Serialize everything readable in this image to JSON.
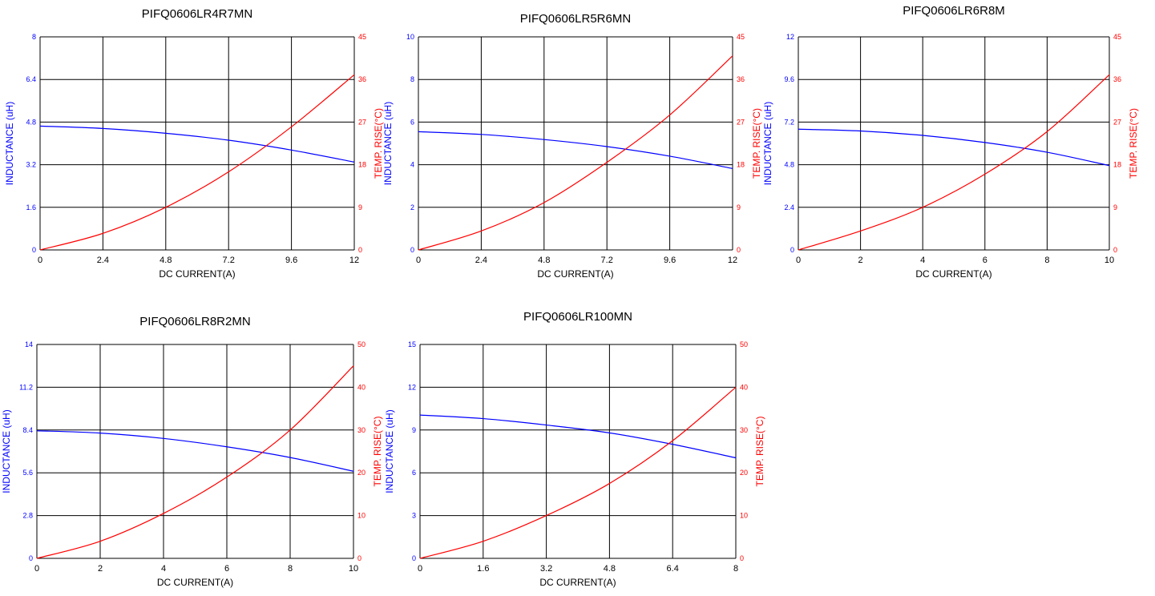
{
  "colors": {
    "inductance": "#0000ff",
    "temperature": "#ff0000",
    "grid": "#000000"
  },
  "chart_data": [
    {
      "type": "line",
      "title": "PIFQ0606LR4R7MN",
      "xlabel": "DC CURRENT(A)",
      "ylabel": "INDUCTANCE (uH)",
      "y2label": "TEMP. RISE(°C)",
      "xlim": [
        0,
        12
      ],
      "ylim": [
        0,
        8
      ],
      "y2lim": [
        0,
        45
      ],
      "xticks": [
        "0",
        "2.4",
        "4.8",
        "7.2",
        "9.6",
        "12"
      ],
      "yticks": [
        "0",
        "1.6",
        "3.2",
        "4.8",
        "6.4",
        "8"
      ],
      "y2ticks": [
        "0",
        "9",
        "18",
        "27",
        "36",
        "45"
      ],
      "grid": true,
      "series": [
        {
          "axis": "left",
          "x": [
            0,
            2.4,
            4.8,
            7.2,
            9.6,
            12
          ],
          "values": [
            4.65,
            4.56,
            4.38,
            4.12,
            3.75,
            3.3
          ]
        },
        {
          "axis": "right",
          "x": [
            0,
            2.4,
            4.8,
            7.2,
            9.6,
            12
          ],
          "values": [
            0,
            3.5,
            9,
            16.5,
            26,
            37
          ]
        }
      ]
    },
    {
      "type": "line",
      "title": "PIFQ0606LR5R6MN",
      "xlabel": "DC CURRENT(A)",
      "ylabel": "INDUCTANCE (uH)",
      "y2label": "TEMP. RISE(°C)",
      "xlim": [
        0,
        12
      ],
      "ylim": [
        0,
        10
      ],
      "y2lim": [
        0,
        45
      ],
      "xticks": [
        "0",
        "2.4",
        "4.8",
        "7.2",
        "9.6",
        "12"
      ],
      "yticks": [
        "0",
        "2",
        "4",
        "6",
        "8",
        "10"
      ],
      "y2ticks": [
        "0",
        "9",
        "18",
        "27",
        "36",
        "45"
      ],
      "grid": true,
      "series": [
        {
          "axis": "left",
          "x": [
            0,
            2.4,
            4.8,
            7.2,
            9.6,
            12
          ],
          "values": [
            5.55,
            5.42,
            5.18,
            4.85,
            4.4,
            3.82
          ]
        },
        {
          "axis": "right",
          "x": [
            0,
            2.4,
            4.8,
            7.2,
            9.6,
            12
          ],
          "values": [
            0,
            4,
            10,
            18.5,
            28.5,
            41
          ]
        }
      ]
    },
    {
      "type": "line",
      "title": "PIFQ0606LR6R8M",
      "xlabel": "DC CURRENT(A)",
      "ylabel": "INDUCTANCE (uH)",
      "y2label": "TEMP. RISE(°C)",
      "xlim": [
        0,
        10
      ],
      "ylim": [
        0,
        12
      ],
      "y2lim": [
        0,
        45
      ],
      "xticks": [
        "0",
        "2",
        "4",
        "6",
        "8",
        "10"
      ],
      "yticks": [
        "0",
        "2.4",
        "4.8",
        "7.2",
        "9.6",
        "12"
      ],
      "y2ticks": [
        "0",
        "9",
        "18",
        "27",
        "36",
        "45"
      ],
      "grid": true,
      "series": [
        {
          "axis": "left",
          "x": [
            0,
            2,
            4,
            6,
            8,
            10
          ],
          "values": [
            6.8,
            6.7,
            6.45,
            6.05,
            5.5,
            4.75
          ]
        },
        {
          "axis": "right",
          "x": [
            0,
            2,
            4,
            6,
            8,
            10
          ],
          "values": [
            0,
            4,
            9,
            16,
            25,
            37
          ]
        }
      ]
    },
    {
      "type": "line",
      "title": "PIFQ0606LR8R2MN",
      "xlabel": "DC CURRENT(A)",
      "ylabel": "INDUCTANCE (uH)",
      "y2label": "TEMP. RISE(°C)",
      "xlim": [
        0,
        10
      ],
      "ylim": [
        0,
        14
      ],
      "y2lim": [
        0,
        50
      ],
      "xticks": [
        "0",
        "2",
        "4",
        "6",
        "8",
        "10"
      ],
      "yticks": [
        "0",
        "2.8",
        "5.6",
        "8.4",
        "11.2",
        "14"
      ],
      "y2ticks": [
        "0",
        "10",
        "20",
        "30",
        "40",
        "50"
      ],
      "grid": true,
      "series": [
        {
          "axis": "left",
          "x": [
            0,
            2,
            4,
            6,
            8,
            10
          ],
          "values": [
            8.35,
            8.2,
            7.85,
            7.3,
            6.6,
            5.7
          ]
        },
        {
          "axis": "right",
          "x": [
            0,
            2,
            4,
            6,
            8,
            10
          ],
          "values": [
            0,
            4,
            10.5,
            19,
            30,
            45
          ]
        }
      ]
    },
    {
      "type": "line",
      "title": "PIFQ0606LR100MN",
      "xlabel": "DC CURRENT(A)",
      "ylabel": "INDUCTANCE (uH)",
      "y2label": "TEMP. RISE(°C)",
      "xlim": [
        0,
        8
      ],
      "ylim": [
        0,
        15
      ],
      "y2lim": [
        0,
        50
      ],
      "xticks": [
        "0",
        "1.6",
        "3.2",
        "4.8",
        "6.4",
        "8"
      ],
      "yticks": [
        "0",
        "3",
        "6",
        "9",
        "12",
        "15"
      ],
      "y2ticks": [
        "0",
        "10",
        "20",
        "30",
        "40",
        "50"
      ],
      "grid": true,
      "series": [
        {
          "axis": "left",
          "x": [
            0,
            1.6,
            3.2,
            4.8,
            6.4,
            8
          ],
          "values": [
            10.05,
            9.8,
            9.35,
            8.8,
            8.0,
            7.05
          ]
        },
        {
          "axis": "right",
          "x": [
            0,
            1.6,
            3.2,
            4.8,
            6.4,
            8
          ],
          "values": [
            0,
            4,
            10,
            17.5,
            27.5,
            40
          ]
        }
      ]
    }
  ]
}
